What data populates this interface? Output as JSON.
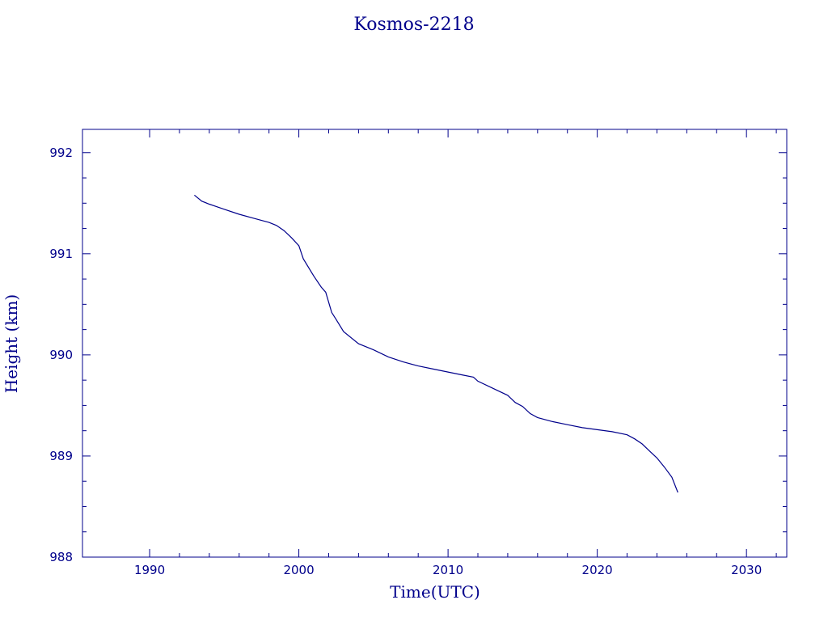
{
  "chart_data": {
    "type": "line",
    "title": "Kosmos-2218",
    "xlabel": "Time(UTC)",
    "ylabel": "Height (km)",
    "xlim": [
      1985.5,
      2032.7
    ],
    "ylim": [
      988,
      992.23
    ],
    "x_ticks": [
      1990,
      2000,
      2010,
      2020,
      2030
    ],
    "x_tick_labels": [
      "1990",
      "2000",
      "2010",
      "2020",
      "2030"
    ],
    "y_ticks": [
      988,
      989,
      990,
      991,
      992
    ],
    "y_tick_labels": [
      "988",
      "989",
      "990",
      "991",
      "992"
    ],
    "grid": false,
    "color": "#00008b",
    "series": [
      {
        "x": [
          1993.0,
          1993.5,
          1994.0,
          1995.0,
          1996.0,
          1997.0,
          1998.0,
          1998.5,
          1999.0,
          1999.5,
          2000.0,
          2000.3,
          2001.0,
          2001.5,
          2001.8,
          2002.2,
          2002.5,
          2003.0,
          2004.0,
          2005.0,
          2006.0,
          2007.0,
          2008.0,
          2009.0,
          2010.0,
          2011.0,
          2011.7,
          2012.0,
          2013.0,
          2014.0,
          2014.5,
          2015.0,
          2015.5,
          2016.0,
          2017.0,
          2018.0,
          2019.0,
          2020.0,
          2021.0,
          2022.0,
          2022.5,
          2023.0,
          2023.5,
          2024.0,
          2024.5,
          2025.0,
          2025.4
        ],
        "y": [
          991.58,
          991.52,
          991.49,
          991.44,
          991.39,
          991.35,
          991.31,
          991.28,
          991.23,
          991.16,
          991.08,
          990.95,
          990.78,
          990.67,
          990.62,
          990.42,
          990.35,
          990.23,
          990.11,
          990.05,
          989.98,
          989.93,
          989.89,
          989.86,
          989.83,
          989.8,
          989.78,
          989.74,
          989.67,
          989.6,
          989.53,
          989.49,
          989.42,
          989.38,
          989.34,
          989.31,
          989.28,
          989.26,
          989.24,
          989.21,
          989.17,
          989.12,
          989.05,
          988.98,
          988.89,
          988.79,
          988.64
        ]
      }
    ]
  }
}
